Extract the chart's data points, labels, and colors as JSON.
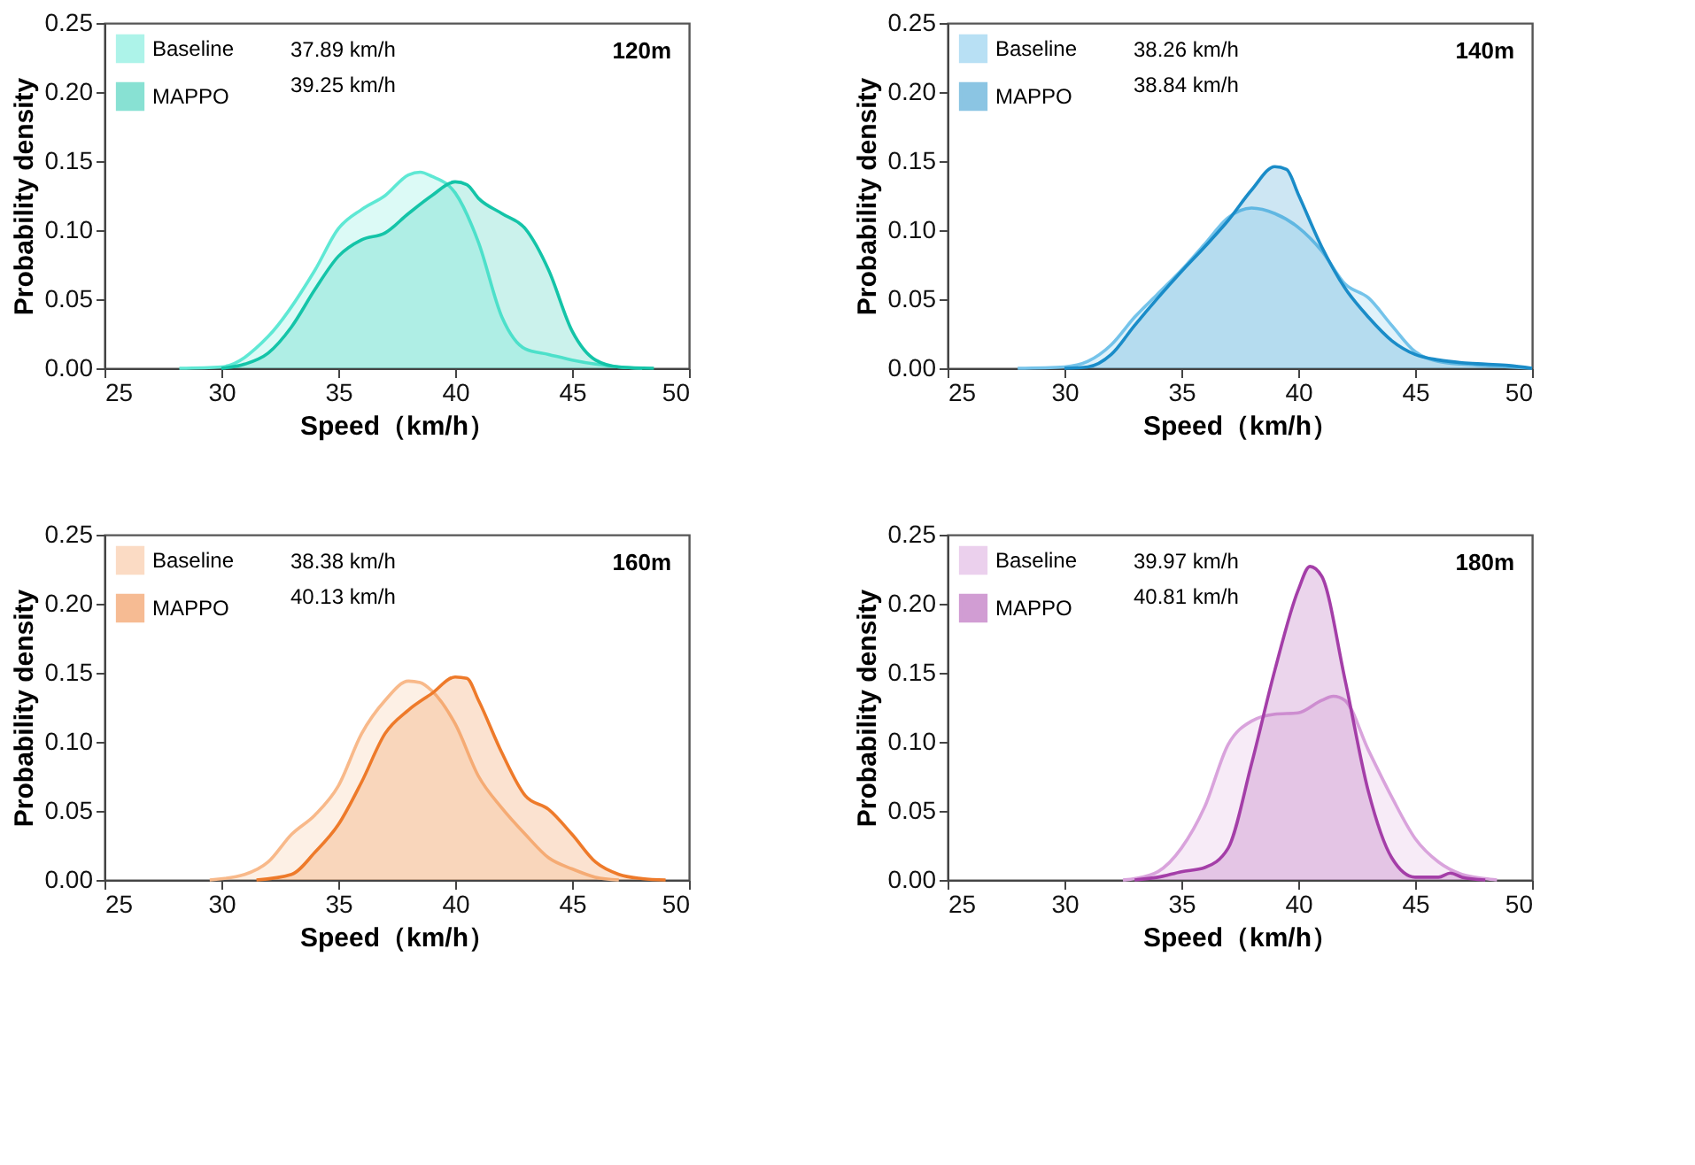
{
  "chart_data": [
    {
      "type": "area",
      "title": "120m",
      "xlabel": "Speed（km/h）",
      "ylabel": "Probability density",
      "xlim": [
        25,
        50
      ],
      "xticks": [
        25,
        30,
        35,
        40,
        45,
        50
      ],
      "ylim": [
        0,
        0.25
      ],
      "yticks": [
        {
          "value": 0,
          "label": "0.00"
        },
        0.05,
        {
          "value": 0.1,
          "label": "0.10"
        },
        0.15,
        {
          "value": 0.2,
          "label": "0.20"
        },
        0.25
      ],
      "legend": "top left",
      "grid": false,
      "annotations": [
        "37.89 km/h",
        "39.25 km/h"
      ],
      "series": [
        {
          "name": "Baseline",
          "color": "#5ee8d4",
          "x": [
            28.2,
            30,
            32,
            34,
            35,
            36,
            37,
            38,
            38.5,
            39,
            40,
            41,
            42,
            43,
            44,
            45,
            46,
            47,
            48
          ],
          "values": [
            0,
            0.001,
            0.023,
            0.071,
            0.101,
            0.115,
            0.125,
            0.14,
            0.142,
            0.139,
            0.127,
            0.091,
            0.037,
            0.014,
            0.01,
            0.006,
            0.003,
            0.001,
            0
          ]
        },
        {
          "name": "MAPPO",
          "color": "#14c4a8",
          "x": [
            30,
            31,
            32,
            33,
            34,
            35,
            36,
            37,
            38,
            39,
            40,
            40.5,
            41,
            42,
            43,
            44,
            45,
            46,
            47,
            48.5
          ],
          "values": [
            0,
            0.003,
            0.011,
            0.03,
            0.057,
            0.081,
            0.093,
            0.098,
            0.112,
            0.125,
            0.135,
            0.133,
            0.123,
            0.112,
            0.101,
            0.071,
            0.027,
            0.006,
            0.001,
            0
          ]
        }
      ]
    },
    {
      "type": "area",
      "title": "140m",
      "xlabel": "Speed（km/h）",
      "ylabel": "Probability density",
      "xlim": [
        25,
        50
      ],
      "xticks": [
        25,
        30,
        35,
        40,
        45,
        50
      ],
      "ylim": [
        0,
        0.25
      ],
      "yticks": [
        {
          "value": 0,
          "label": "0.00"
        },
        0.05,
        {
          "value": 0.1,
          "label": "0.10"
        },
        0.15,
        {
          "value": 0.2,
          "label": "0.20"
        },
        0.25
      ],
      "legend": "top left",
      "grid": false,
      "annotations": [
        "38.26 km/h",
        "38.84 km/h"
      ],
      "series": [
        {
          "name": "Baseline",
          "color": "#74c3ea",
          "x": [
            28,
            30,
            31,
            32,
            33,
            34,
            35,
            36,
            37,
            38,
            39,
            40,
            41,
            42,
            43,
            44,
            45,
            46,
            47,
            48,
            50
          ],
          "values": [
            0,
            0.001,
            0.005,
            0.017,
            0.037,
            0.054,
            0.071,
            0.09,
            0.109,
            0.116,
            0.112,
            0.102,
            0.085,
            0.061,
            0.051,
            0.031,
            0.012,
            0.005,
            0.003,
            0.002,
            0
          ]
        },
        {
          "name": "MAPPO",
          "color": "#1a8cc8",
          "x": [
            30,
            31,
            32,
            33,
            34,
            35,
            36,
            37,
            38,
            39,
            39.5,
            40,
            41,
            42,
            43,
            44,
            45,
            46,
            47,
            48,
            49,
            50
          ],
          "values": [
            0,
            0.001,
            0.01,
            0.031,
            0.051,
            0.07,
            0.088,
            0.107,
            0.129,
            0.146,
            0.144,
            0.126,
            0.088,
            0.058,
            0.037,
            0.02,
            0.01,
            0.006,
            0.004,
            0.003,
            0.002,
            0
          ]
        }
      ]
    },
    {
      "type": "area",
      "title": "160m",
      "xlabel": "Speed（km/h）",
      "ylabel": "Probability density",
      "xlim": [
        25,
        50
      ],
      "xticks": [
        25,
        30,
        35,
        40,
        45,
        50
      ],
      "ylim": [
        0,
        0.25
      ],
      "yticks": [
        {
          "value": 0,
          "label": "0.00"
        },
        0.05,
        {
          "value": 0.1,
          "label": "0.10"
        },
        0.15,
        {
          "value": 0.2,
          "label": "0.20"
        },
        0.25
      ],
      "legend": "top left",
      "grid": false,
      "annotations": [
        "38.38 km/h",
        "40.13 km/h"
      ],
      "series": [
        {
          "name": "Baseline",
          "color": "#f8b98a",
          "x": [
            29.5,
            31,
            32,
            33,
            34,
            35,
            36,
            37,
            38,
            38.5,
            39,
            40,
            41,
            42,
            43,
            44,
            45,
            46,
            47
          ],
          "values": [
            0,
            0.004,
            0.013,
            0.033,
            0.047,
            0.068,
            0.106,
            0.13,
            0.144,
            0.143,
            0.137,
            0.113,
            0.075,
            0.052,
            0.033,
            0.016,
            0.008,
            0.002,
            0
          ]
        },
        {
          "name": "MAPPO",
          "color": "#ee7a2a",
          "x": [
            31.5,
            33,
            34,
            35,
            36,
            37,
            38,
            39,
            40,
            40.5,
            41,
            42,
            43,
            44,
            45,
            46,
            47,
            48,
            49
          ],
          "values": [
            0,
            0.004,
            0.02,
            0.04,
            0.071,
            0.106,
            0.123,
            0.135,
            0.147,
            0.146,
            0.13,
            0.092,
            0.061,
            0.051,
            0.033,
            0.013,
            0.004,
            0.001,
            0
          ]
        }
      ]
    },
    {
      "type": "area",
      "title": "180m",
      "xlabel": "Speed（km/h）",
      "ylabel": "Probability density",
      "xlim": [
        25,
        50
      ],
      "xticks": [
        25,
        30,
        35,
        40,
        45,
        50
      ],
      "ylim": [
        0,
        0.25
      ],
      "yticks": [
        {
          "value": 0,
          "label": "0.00"
        },
        0.05,
        {
          "value": 0.1,
          "label": "0.10"
        },
        0.15,
        {
          "value": 0.2,
          "label": "0.20"
        },
        0.25
      ],
      "legend": "top left",
      "grid": false,
      "annotations": [
        "39.97 km/h",
        "40.81 km/h"
      ],
      "series": [
        {
          "name": "Baseline",
          "color": "#d9a3dc",
          "x": [
            32.5,
            33,
            34,
            35,
            36,
            37,
            38,
            39,
            40,
            41,
            41.5,
            42,
            43,
            44,
            45,
            46,
            47,
            48,
            48.5
          ],
          "values": [
            0,
            0.001,
            0.006,
            0.023,
            0.053,
            0.098,
            0.115,
            0.12,
            0.121,
            0.13,
            0.133,
            0.13,
            0.094,
            0.06,
            0.03,
            0.013,
            0.004,
            0.001,
            0
          ]
        },
        {
          "name": "MAPPO",
          "color": "#a43ea8",
          "x": [
            33,
            34,
            35,
            36,
            37,
            38,
            39,
            40,
            40.5,
            41,
            42,
            43,
            44,
            45,
            46,
            46.5,
            47,
            48
          ],
          "values": [
            0,
            0.002,
            0.006,
            0.009,
            0.023,
            0.084,
            0.152,
            0.21,
            0.227,
            0.22,
            0.145,
            0.064,
            0.016,
            0.002,
            0.002,
            0.005,
            0.002,
            0
          ]
        }
      ]
    }
  ]
}
